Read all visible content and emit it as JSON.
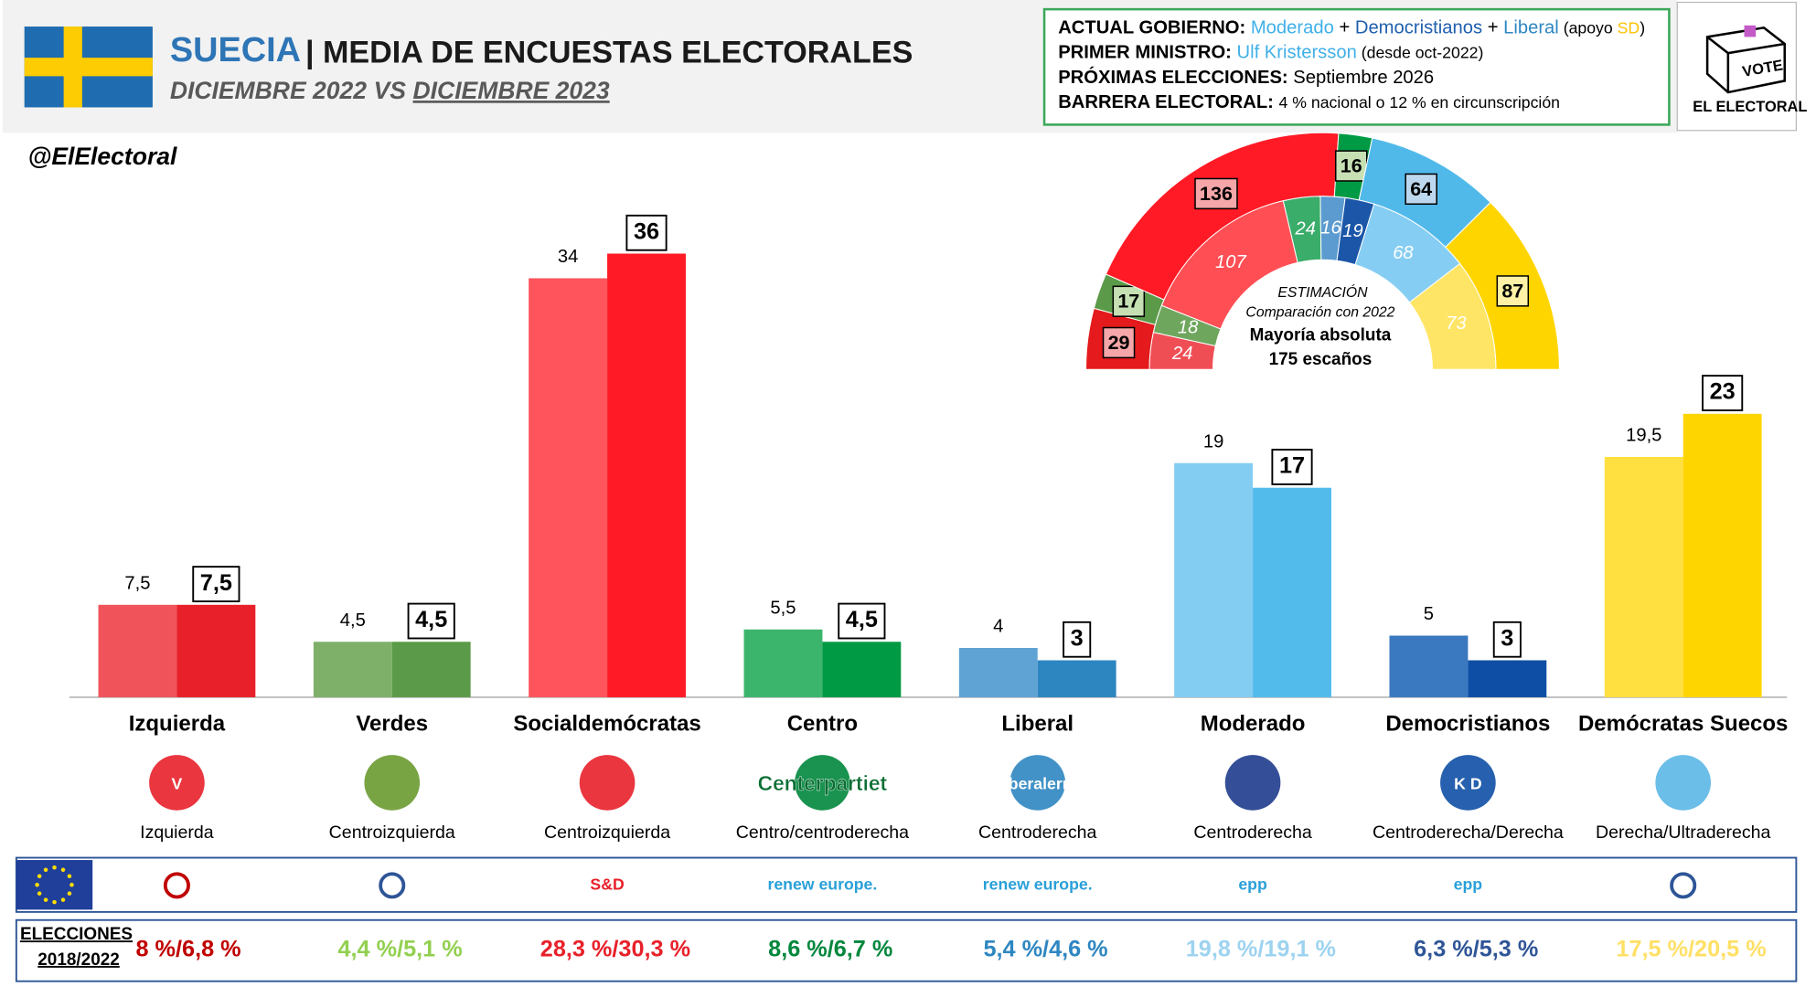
{
  "header": {
    "country": "SUECIA",
    "title": "| MEDIA DE ENCUESTAS ELECTORALES",
    "vs": "VS",
    "handle": "@ElElectoral"
  },
  "info_box": {
    "lines": [
      [
        {
          "text": "ACTUAL GOBIERNO: ",
          "color": "#000000",
          "bold": true
        },
        {
          "text": "Moderado",
          "color": "#3fb0e8"
        },
        {
          "text": " + ",
          "color": "#000000"
        },
        {
          "text": "Democristianos",
          "color": "#1f5fae"
        },
        {
          "text": " + ",
          "color": "#000000"
        },
        {
          "text": "Liberal",
          "color": "#2e86c1"
        },
        {
          "text": " (apoyo ",
          "color": "#000000",
          "small": true
        },
        {
          "text": "SD",
          "color": "#ffc000",
          "small": true
        },
        {
          "text": ")",
          "color": "#000000",
          "small": true
        }
      ],
      [
        {
          "text": "PRIMER MINISTRO: ",
          "color": "#000000",
          "bold": true
        },
        {
          "text": "Ulf Kristersson",
          "color": "#3fb0e8"
        },
        {
          "text": " (desde oct-2022)",
          "color": "#000000",
          "small": true
        }
      ],
      [
        {
          "text": "PRÓXIMAS ELECCIONES: ",
          "color": "#000000",
          "bold": true
        },
        {
          "text": "Septiembre 2026",
          "color": "#000000"
        }
      ],
      [
        {
          "text": "BARRERA ELECTORAL: ",
          "color": "#000000",
          "bold": true
        },
        {
          "text": "4 % nacional ",
          "color": "#000000",
          "small": true
        },
        {
          "text": "o",
          "color": "#000000",
          "small": true
        },
        {
          "text": " 12 % en circunscripción",
          "color": "#000000",
          "small": true
        }
      ]
    ]
  },
  "brand": {
    "vote": "VOTE",
    "name": "EL ELECTORAL"
  },
  "chart_data": [
    {
      "type": "bar",
      "categories": [
        "Izquierda",
        "Verdes",
        "Socialdemócratas",
        "Centro",
        "Liberal",
        "Moderado",
        "Democristianos",
        "Demócratas Suecos"
      ],
      "series": [
        {
          "name": "DICIEMBRE 2022",
          "colors": [
            "#f0545a",
            "#7fb069",
            "#ff545b",
            "#3cb56c",
            "#5fa3d4",
            "#83cdf3",
            "#3a78bf",
            "#ffe040"
          ],
          "values": [
            7.5,
            4.5,
            34,
            5.5,
            4,
            19,
            5,
            19.5
          ],
          "value_labels": [
            "7,5",
            "4,5",
            "34",
            "5,5",
            "4",
            "19",
            "5",
            "19,5"
          ]
        },
        {
          "name": "DICIEMBRE 2023",
          "colors": [
            "#e8202a",
            "#5a9a48",
            "#ff1a25",
            "#009a44",
            "#2e86c1",
            "#52bbec",
            "#0e4fa5",
            "#ffd500"
          ],
          "values": [
            7.5,
            4.5,
            36,
            4.5,
            3,
            17,
            3,
            23
          ],
          "value_labels": [
            "7,5",
            "4,5",
            "36",
            "4,5",
            "3",
            "17",
            "3",
            "23"
          ]
        }
      ],
      "ylim": [
        0,
        40
      ],
      "ideology": [
        "Izquierda",
        "Centroizquierda",
        "Centroizquierda",
        "Centro/centroderecha",
        "Centroderecha",
        "Centroderecha",
        "Centroderecha/Derecha",
        "Derecha/Ultraderecha"
      ],
      "logo_texts": [
        "V",
        null,
        null,
        "Centerpartiet",
        "Liberalerna",
        null,
        "K D",
        null
      ],
      "eu_groups": [
        null,
        null,
        "S&D",
        "renew europe.",
        "renew europe.",
        "epp",
        "epp",
        null
      ],
      "elections": {
        "label": "ELECCIONES",
        "years": "2018/2022",
        "results": [
          "8 %/6,8 %",
          "4,4 %/5,1 %",
          "28,3 %/30,3 %",
          "8,6 %/6,7 %",
          "5,4 %/4,6 %",
          "19,8 %/19,1 %",
          "6,3 %/5,3 %",
          "17,5 %/20,5 %"
        ],
        "colors": [
          "#c00000",
          "#92d050",
          "#e8202a",
          "#00873c",
          "#2e86c1",
          "#9dd3f0",
          "#2f5597",
          "#ffe066"
        ]
      }
    },
    {
      "type": "hemicycle",
      "title": "ESTIMACIÓN",
      "subtitle": "Comparación con 2022",
      "annotation": "Mayoría absoluta",
      "annotation2": "175 escaños",
      "series": [
        {
          "ring": "outer",
          "values": [
            29,
            17,
            136,
            16,
            0,
            64,
            0,
            87
          ],
          "colors": [
            "#e41a1c",
            "#5a9a48",
            "#ff1a25",
            "#009a44",
            "#2e86c1",
            "#51b9ea",
            "#0e4fa5",
            "#ffd500"
          ],
          "label_colors": [
            "#f4a6a8",
            "#c6e0b4",
            "#f4a6a8",
            "#c6e0b4",
            "#bdd7ee",
            "#bdd7ee",
            "#bdd7ee",
            "#fff2a6"
          ]
        },
        {
          "ring": "inner",
          "values": [
            24,
            18,
            107,
            24,
            16,
            19,
            68,
            73
          ],
          "colors": [
            "#f04e55",
            "#6fa65e",
            "#ff4f55",
            "#3aad6a",
            "#5b9bd0",
            "#1c56a8",
            "#86cdf3",
            "#ffe566"
          ]
        }
      ]
    }
  ]
}
